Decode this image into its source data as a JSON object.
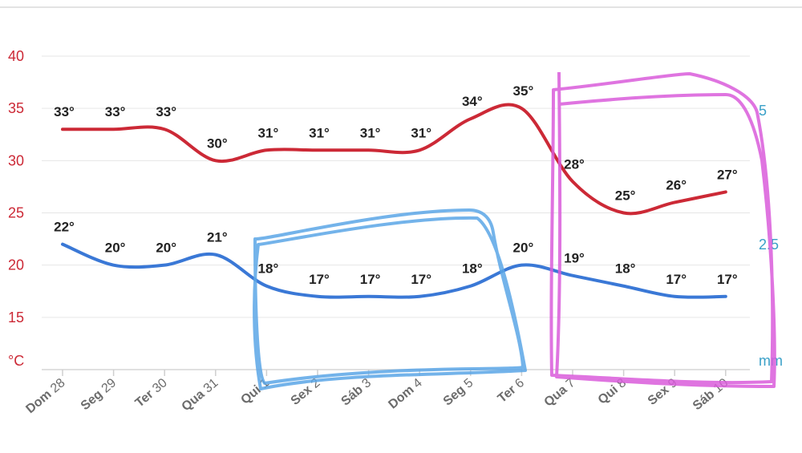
{
  "chart_data": {
    "type": "line",
    "categories": [
      {
        "day": "Dom",
        "num": "28"
      },
      {
        "day": "Seg",
        "num": "29"
      },
      {
        "day": "Ter",
        "num": "30"
      },
      {
        "day": "Qua",
        "num": "31"
      },
      {
        "day": "Qui",
        "num": "1"
      },
      {
        "day": "Sex",
        "num": "2"
      },
      {
        "day": "Sáb",
        "num": "3"
      },
      {
        "day": "Dom",
        "num": "4"
      },
      {
        "day": "Seg",
        "num": "5"
      },
      {
        "day": "Ter",
        "num": "6"
      },
      {
        "day": "Qua",
        "num": "7"
      },
      {
        "day": "Qui",
        "num": "8"
      },
      {
        "day": "Sex",
        "num": "9"
      },
      {
        "day": "Sáb",
        "num": "10"
      }
    ],
    "series": [
      {
        "key": "max",
        "color": "#cc2936",
        "values": [
          33,
          33,
          33,
          30,
          31,
          31,
          31,
          31,
          34,
          35,
          28,
          25,
          26,
          27
        ]
      },
      {
        "key": "min",
        "color": "#3a78d6",
        "values": [
          22,
          20,
          20,
          21,
          18,
          17,
          17,
          17,
          18,
          20,
          19,
          18,
          17,
          17
        ]
      }
    ],
    "y_left": {
      "ticks": [
        "40",
        "35",
        "30",
        "25",
        "20",
        "15"
      ],
      "unit": "°C",
      "color": "#cc2936",
      "range": [
        10,
        40
      ]
    },
    "y_right": {
      "ticks": [
        "5",
        "2.5"
      ],
      "unit": "mm",
      "color": "#3aa0c8"
    },
    "degree_suffix": "°",
    "grid": true
  }
}
